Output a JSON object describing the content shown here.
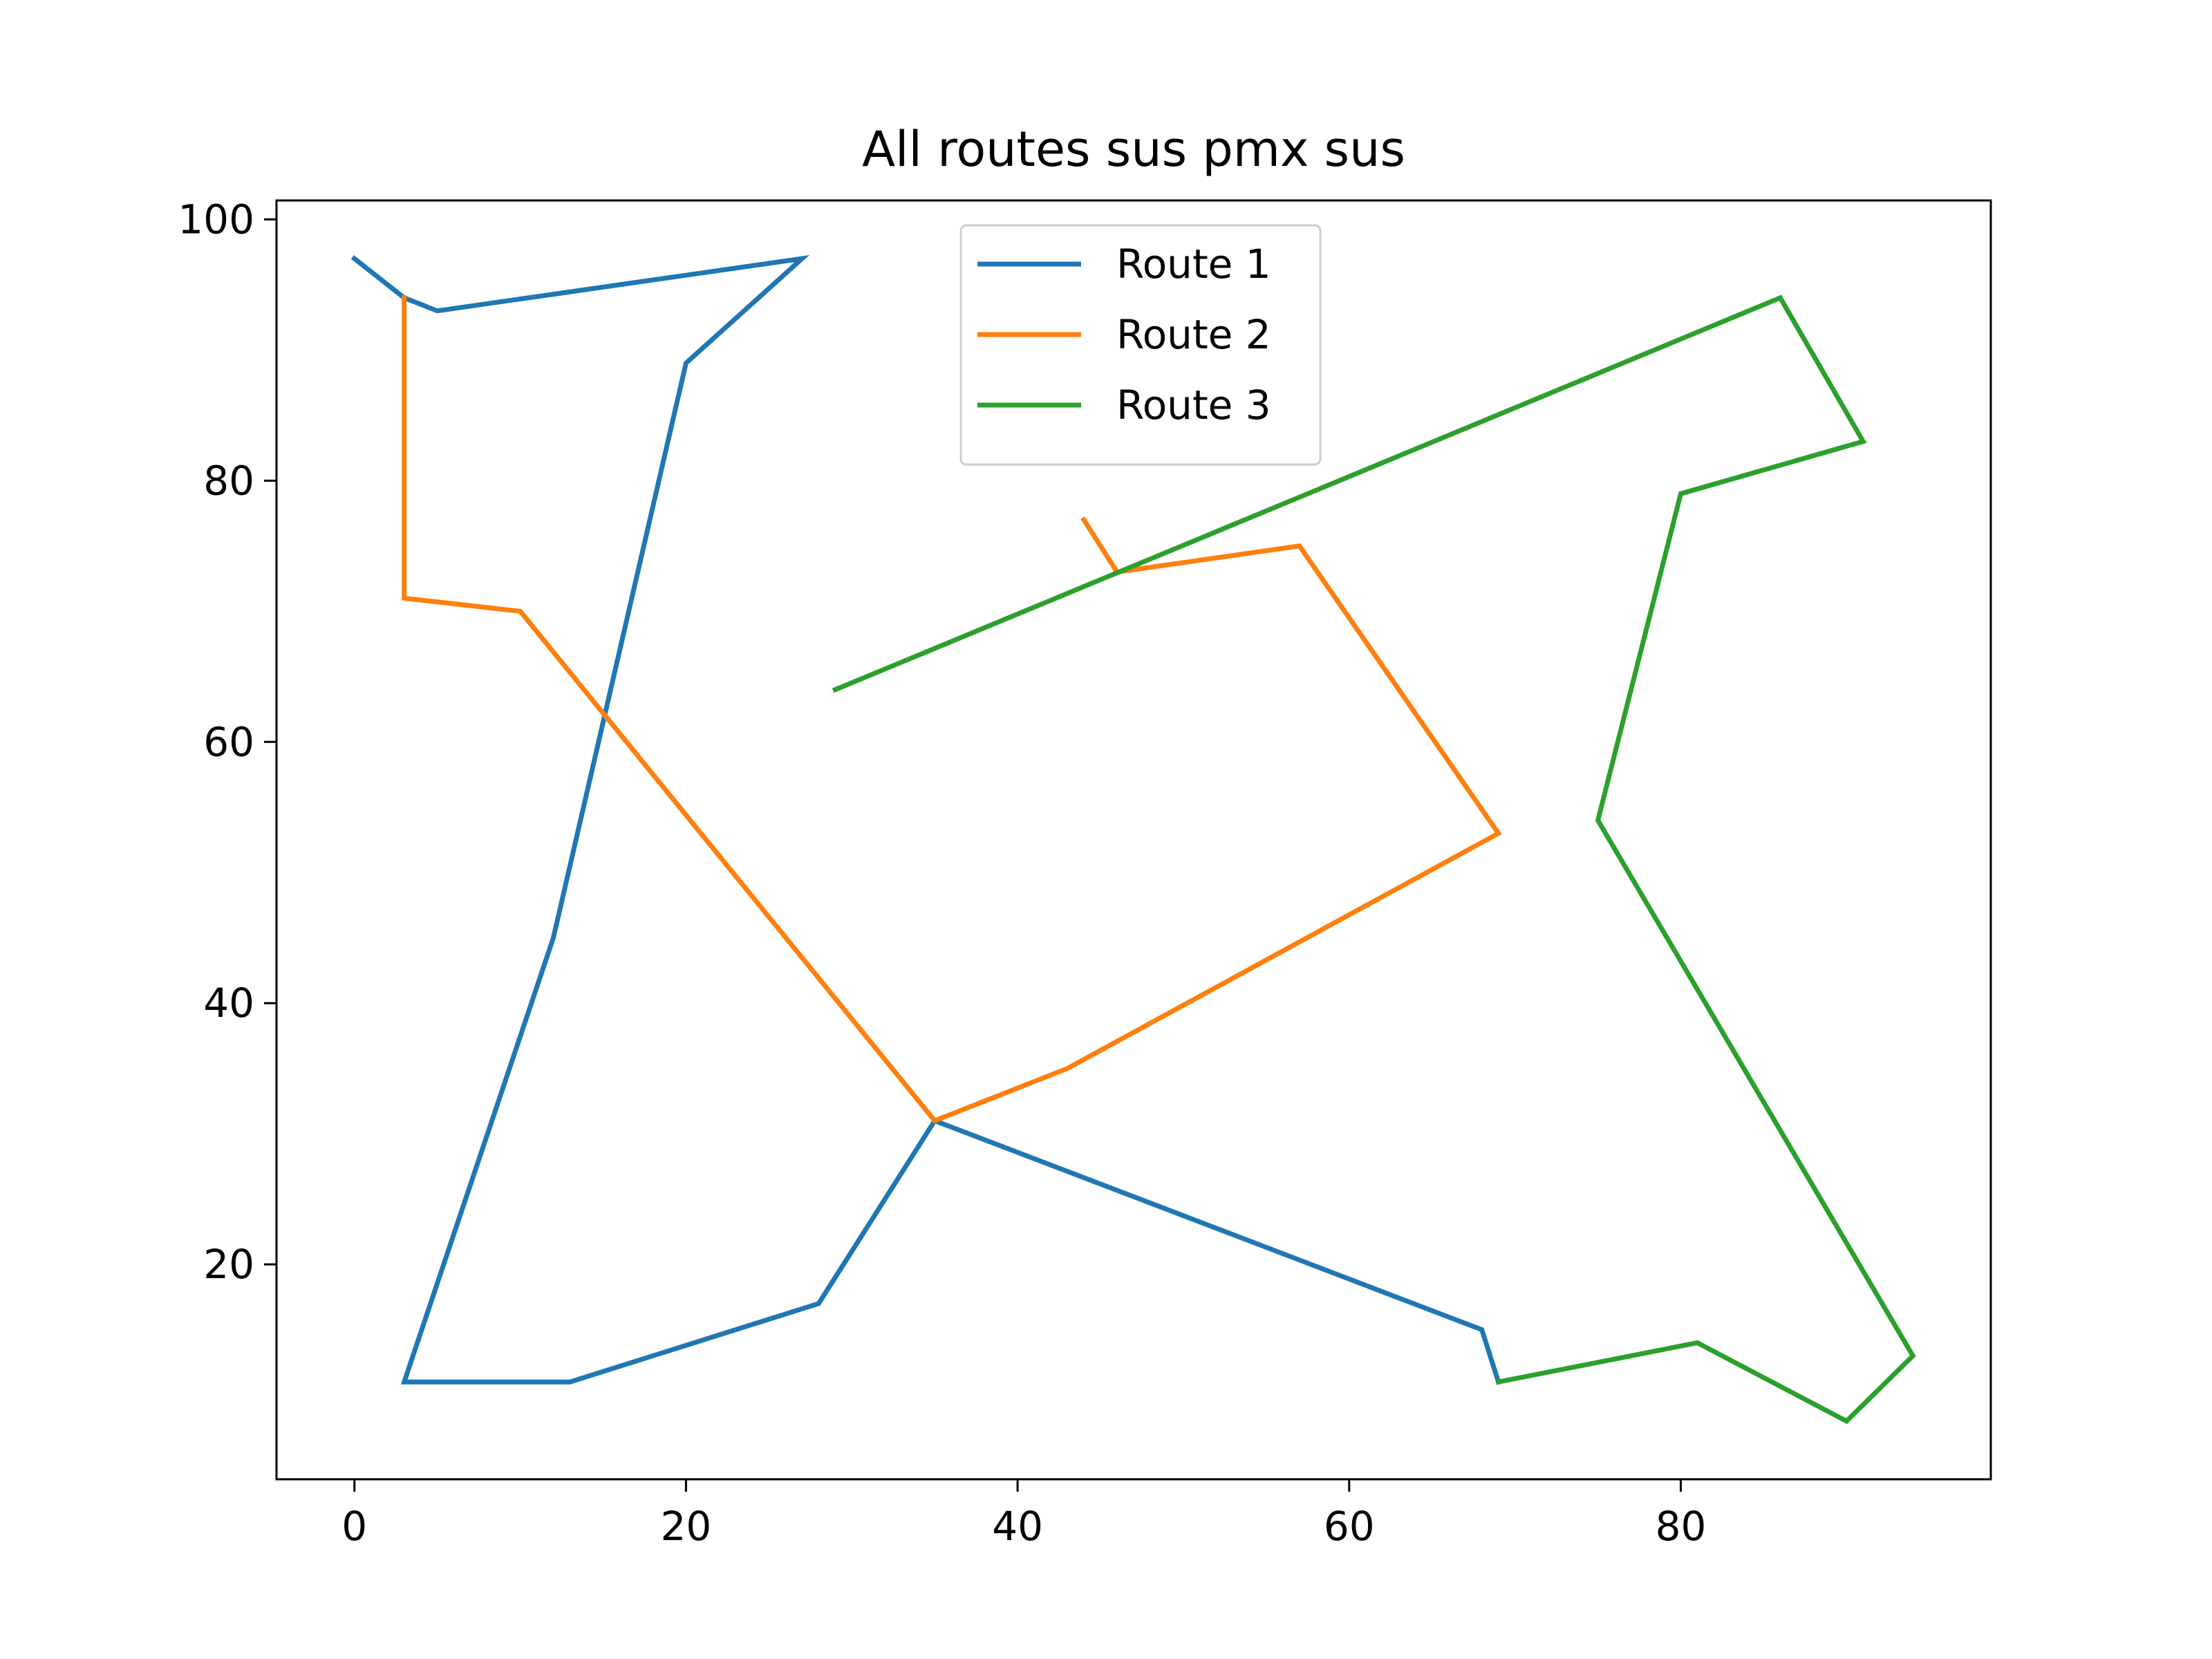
{
  "chart_data": {
    "type": "line",
    "title": "All routes sus pmx sus",
    "xlabel": "",
    "ylabel": "",
    "xlim": [
      -4.7,
      98.7
    ],
    "ylim": [
      3.55,
      101.45
    ],
    "x_ticks": [
      0,
      20,
      40,
      60,
      80
    ],
    "y_ticks": [
      20,
      40,
      60,
      80,
      100
    ],
    "grid": false,
    "legend_position": "top-center",
    "series": [
      {
        "name": "Route 1",
        "color": "#1f77b4",
        "points": [
          [
            0,
            97
          ],
          [
            3,
            94
          ],
          [
            5,
            93
          ],
          [
            27,
            97
          ],
          [
            20,
            89
          ],
          [
            12,
            45
          ],
          [
            3,
            11
          ],
          [
            13,
            11
          ],
          [
            28,
            17
          ],
          [
            35,
            31
          ],
          [
            68,
            15
          ],
          [
            69,
            11
          ]
        ]
      },
      {
        "name": "Route 2",
        "color": "#ff7f0e",
        "points": [
          [
            3,
            94
          ],
          [
            3,
            71
          ],
          [
            10,
            70
          ],
          [
            35,
            31
          ],
          [
            43,
            35
          ],
          [
            69,
            53
          ],
          [
            57,
            75
          ],
          [
            46,
            73
          ],
          [
            44,
            77
          ]
        ]
      },
      {
        "name": "Route 3",
        "color": "#2ca02c",
        "points": [
          [
            69,
            11
          ],
          [
            81,
            14
          ],
          [
            90,
            8
          ],
          [
            94,
            13
          ],
          [
            75,
            54
          ],
          [
            80,
            79
          ],
          [
            91,
            83
          ],
          [
            86,
            94
          ],
          [
            29,
            64
          ]
        ]
      }
    ]
  }
}
